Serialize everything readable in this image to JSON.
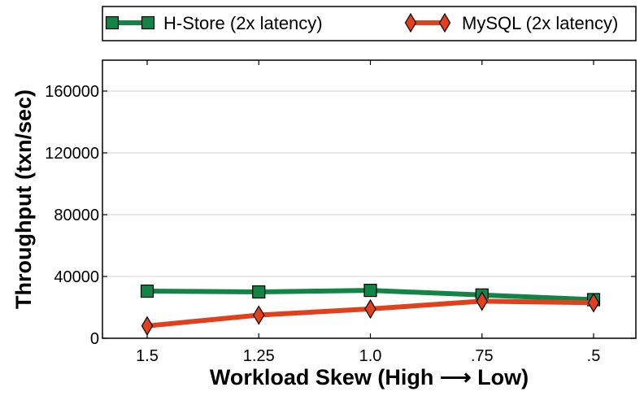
{
  "chart_data": {
    "type": "line",
    "categories": [
      "1.5",
      "1.25",
      "1.0",
      ".75",
      ".5"
    ],
    "xlabel": "Workload Skew (High ⟶ Low)",
    "ylabel": "Throughput (txn/sec)",
    "ylim": [
      0,
      180000
    ],
    "yticks": [
      0,
      40000,
      80000,
      120000,
      160000
    ],
    "ytick_labels": [
      "0",
      "40000",
      "80000",
      "120000",
      "160000"
    ],
    "grid": "horizontal",
    "legend_position": "top",
    "series": [
      {
        "name": "H-Store (2x latency)",
        "values": [
          30500,
          30000,
          31000,
          28000,
          25000
        ],
        "color": "#128446",
        "marker": "square"
      },
      {
        "name": "MySQL (2x latency)",
        "values": [
          8000,
          15000,
          19000,
          24000,
          23000
        ],
        "color": "#e0401c",
        "marker": "diamond"
      }
    ]
  }
}
